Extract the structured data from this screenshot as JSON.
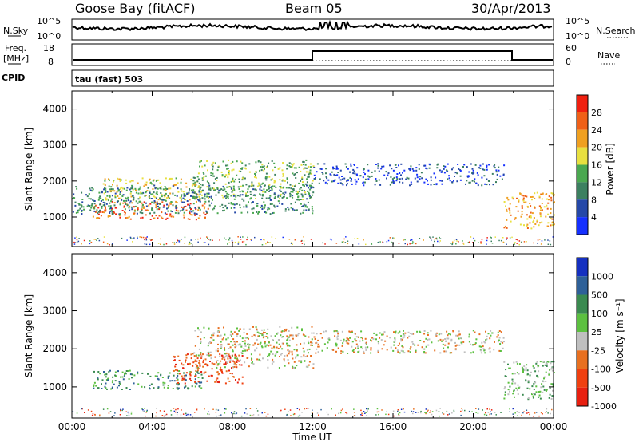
{
  "header": {
    "station": "Goose Bay (fitACF)",
    "beam": "Beam 05",
    "date": "30/Apr/2013"
  },
  "nsky_panel": {
    "left_label": "N.Sky",
    "right_label": "N.Search",
    "left_ticks": [
      "10^5",
      "10^0"
    ],
    "right_ticks": [
      "10^5",
      "10^0"
    ]
  },
  "freq_panel": {
    "left_label_1": "Freq.",
    "left_label_2": "[MHz]",
    "right_label": "Nave",
    "left_ticks": [
      "18",
      "8"
    ],
    "right_ticks": [
      "60",
      "0"
    ]
  },
  "cpid": {
    "label": "CPID",
    "value": "tau (fast) 503"
  },
  "time_axis": {
    "ticks": [
      "00:00",
      "04:00",
      "08:00",
      "12:00",
      "16:00",
      "20:00",
      "00:00"
    ],
    "label": "Time UT"
  },
  "chart_data": [
    {
      "type": "heatmap",
      "name": "power",
      "ylabel": "Slant Range [km]",
      "yticks": [
        "1000",
        "2000",
        "3000",
        "4000"
      ],
      "ylim": [
        180,
        4500
      ],
      "xlim_hours": [
        0,
        24
      ],
      "colorbar_label": "Power [dB]",
      "colorbar_ticks": [
        "4",
        "8",
        "12",
        "16",
        "20",
        "24",
        "28"
      ],
      "colorbar_colors": [
        "#1530ff",
        "#2548a8",
        "#3c8060",
        "#4aa850",
        "#e8e040",
        "#f0a020",
        "#f06018",
        "#f02010"
      ],
      "regions": [
        {
          "x": [
            1.0,
            6.8
          ],
          "y": [
            950,
            1450
          ],
          "level": 6
        },
        {
          "x": [
            1.5,
            6.5
          ],
          "y": [
            1450,
            2100
          ],
          "level": 4
        },
        {
          "x": [
            0.0,
            12.0
          ],
          "y": [
            1100,
            1900
          ],
          "level": 2
        },
        {
          "x": [
            6.0,
            12.0
          ],
          "y": [
            1500,
            2600
          ],
          "level": 3
        },
        {
          "x": [
            12.0,
            21.5
          ],
          "y": [
            1900,
            2500
          ],
          "level": 1
        },
        {
          "x": [
            21.5,
            24.0
          ],
          "y": [
            700,
            1700
          ],
          "level": 5
        }
      ]
    },
    {
      "type": "heatmap",
      "name": "velocity",
      "ylabel": "Slant Range [km]",
      "yticks": [
        "1000",
        "2000",
        "3000",
        "4000"
      ],
      "ylim": [
        180,
        4500
      ],
      "xlim_hours": [
        0,
        24
      ],
      "colorbar_label": "Velocity [m s⁻¹]",
      "colorbar_ticks": [
        "1000",
        "500",
        "100",
        "25",
        "-25",
        "-100",
        "-500",
        "-1000"
      ],
      "colorbar_colors": [
        "#1530c0",
        "#2e6098",
        "#3a8a50",
        "#5cc040",
        "#bfbfbf",
        "#e87020",
        "#f04010",
        "#e82010"
      ],
      "regions": [
        {
          "x": [
            1.0,
            6.5
          ],
          "y": [
            950,
            1450
          ],
          "level": 2
        },
        {
          "x": [
            5.0,
            8.5
          ],
          "y": [
            1100,
            1900
          ],
          "level": 6
        },
        {
          "x": [
            6.0,
            12.0
          ],
          "y": [
            1500,
            2600
          ],
          "level": 4
        },
        {
          "x": [
            12.0,
            21.5
          ],
          "y": [
            1900,
            2500
          ],
          "level": 4
        },
        {
          "x": [
            21.5,
            24.0
          ],
          "y": [
            700,
            1700
          ],
          "level": 3
        }
      ]
    }
  ]
}
